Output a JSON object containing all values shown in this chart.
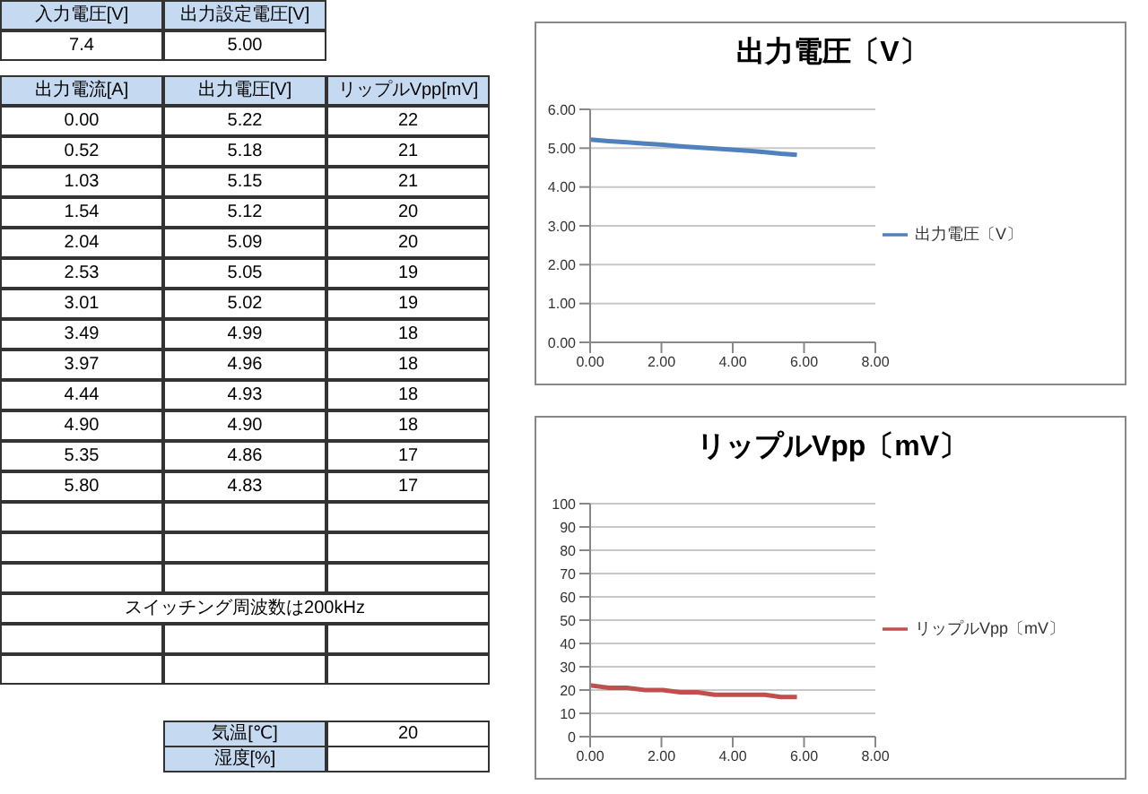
{
  "chart_data": [
    {
      "type": "other",
      "xlabel": "出力電流[A]",
      "categories": [
        "0.00",
        "0.52",
        "1.03",
        "1.54",
        "2.04",
        "2.53",
        "3.01",
        "3.49",
        "3.97",
        "4.44",
        "4.90",
        "5.35",
        "5.80"
      ],
      "annotations": [
        "入力電圧[V]",
        "出力設定電圧[V]",
        "7.4",
        "5.00",
        "スイッチング周波数は200kHz",
        "気温[℃]",
        "20",
        "湿度[%]",
        "出力電圧[V]",
        "リップルVpp[mV]"
      ]
    },
    {
      "type": "line",
      "title": "出力電圧〔V〕",
      "x": [
        0.0,
        0.52,
        1.03,
        1.54,
        2.04,
        2.53,
        3.01,
        3.49,
        3.97,
        4.44,
        4.9,
        5.35,
        5.8
      ],
      "series": [
        {
          "name": "出力電圧〔V〕",
          "color": "#4f81bd",
          "values": [
            5.22,
            5.18,
            5.15,
            5.12,
            5.09,
            5.05,
            5.02,
            4.99,
            4.96,
            4.93,
            4.9,
            4.86,
            4.83
          ],
          "value_labels": [
            "5.22",
            "5.18",
            "5.15",
            "5.12",
            "5.09",
            "5.05",
            "5.02",
            "4.99",
            "4.96",
            "4.93",
            "4.90",
            "4.86",
            "4.83"
          ]
        }
      ],
      "xlim": [
        0,
        8
      ],
      "xticks": [
        {
          "value": 0,
          "label": "0.00"
        },
        {
          "value": 2,
          "label": "2.00"
        },
        {
          "value": 4,
          "label": "4.00"
        },
        {
          "value": 6,
          "label": "6.00"
        },
        {
          "value": 8,
          "label": "8.00"
        }
      ],
      "ylim": [
        0,
        6
      ],
      "yticks": [
        {
          "value": 0,
          "label": "0.00"
        },
        {
          "value": 1,
          "label": "1.00"
        },
        {
          "value": 2,
          "label": "2.00"
        },
        {
          "value": 3,
          "label": "3.00"
        },
        {
          "value": 4,
          "label": "4.00"
        },
        {
          "value": 5,
          "label": "5.00"
        },
        {
          "value": 6,
          "label": "6.00"
        }
      ],
      "grid": "y",
      "legend": "right",
      "marker": "none",
      "line_style": "solid"
    },
    {
      "type": "line",
      "title": "リップルVpp〔mV〕",
      "x": [
        0.0,
        0.52,
        1.03,
        1.54,
        2.04,
        2.53,
        3.01,
        3.49,
        3.97,
        4.44,
        4.9,
        5.35,
        5.8
      ],
      "series": [
        {
          "name": "リップルVpp〔mV〕",
          "color": "#c0504d",
          "values": [
            22,
            21,
            21,
            20,
            20,
            19,
            19,
            18,
            18,
            18,
            18,
            17,
            17
          ],
          "value_labels": [
            "22",
            "21",
            "21",
            "20",
            "20",
            "19",
            "19",
            "18",
            "18",
            "18",
            "18",
            "17",
            "17"
          ]
        }
      ],
      "xlim": [
        0,
        8
      ],
      "xticks": [
        {
          "value": 0,
          "label": "0.00"
        },
        {
          "value": 2,
          "label": "2.00"
        },
        {
          "value": 4,
          "label": "4.00"
        },
        {
          "value": 6,
          "label": "6.00"
        },
        {
          "value": 8,
          "label": "8.00"
        }
      ],
      "ylim": [
        0,
        100
      ],
      "yticks": [
        0,
        10,
        20,
        30,
        40,
        50,
        60,
        70,
        80,
        90,
        100
      ],
      "grid": "y",
      "legend": "right",
      "marker": "none",
      "line_style": "solid"
    }
  ]
}
